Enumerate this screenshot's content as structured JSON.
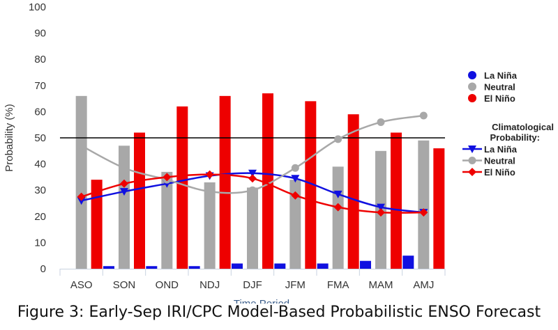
{
  "chart_data": {
    "type": "bar",
    "categories": [
      "ASO",
      "SON",
      "OND",
      "NDJ",
      "DJF",
      "JFM",
      "FMA",
      "MAM",
      "AMJ"
    ],
    "series": [
      {
        "name": "La Niña",
        "color": "#1010e0",
        "values": [
          0,
          1,
          1,
          1,
          2,
          2,
          2,
          3,
          5
        ]
      },
      {
        "name": "Neutral",
        "color": "#a8a8a8",
        "values": [
          66,
          47,
          37,
          33,
          31,
          34,
          39,
          45,
          49
        ]
      },
      {
        "name": "El Niño",
        "color": "#ee0000",
        "values": [
          34,
          52,
          62,
          66,
          67,
          64,
          59,
          52,
          46
        ]
      }
    ],
    "climatology_title": "Climatological Probability:",
    "climatology": [
      {
        "name": "La Niña",
        "color": "#1010e0",
        "marker": "triangle-down",
        "values": [
          26,
          29.5,
          32.5,
          35.5,
          36.5,
          34.5,
          28.5,
          23.5,
          21.5
        ]
      },
      {
        "name": "Neutral",
        "color": "#a8a8a8",
        "marker": "circle",
        "values": [
          47,
          38.5,
          34,
          29.5,
          30,
          38.5,
          49.5,
          56,
          58.5
        ]
      },
      {
        "name": "El Niño",
        "color": "#ee0000",
        "marker": "diamond",
        "values": [
          27.5,
          32.5,
          35,
          36,
          34.5,
          28,
          23.5,
          21.5,
          21.5
        ]
      }
    ],
    "reference_line": 50,
    "ylabel": "Probability (%)",
    "xlabel": "Time Period",
    "ylim": [
      0,
      100
    ],
    "yticks": [
      0,
      10,
      20,
      30,
      40,
      50,
      60,
      70,
      80,
      90,
      100
    ],
    "grid": false,
    "legend_position": "right"
  },
  "caption": "Figure 3: Early-Sep IRI/CPC Model-Based Probabilistic ENSO Forecast"
}
